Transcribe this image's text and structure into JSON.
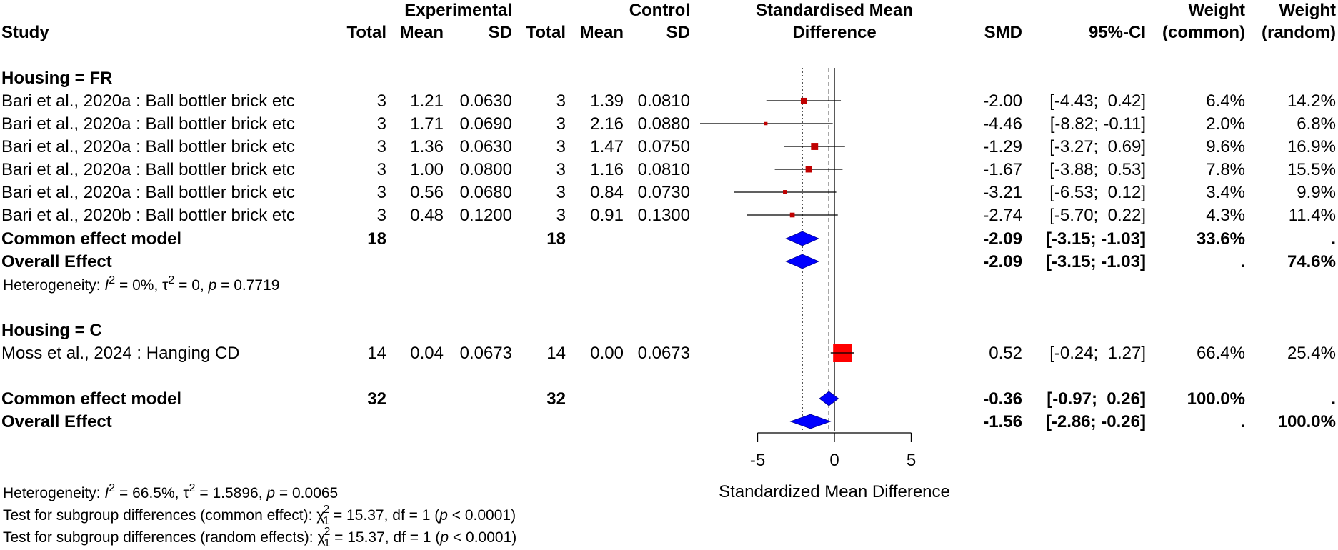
{
  "headers": {
    "study": "Study",
    "experimental": "Experimental",
    "control": "Control",
    "total": "Total",
    "mean": "Mean",
    "sd": "SD",
    "smd_title_1": "Standardised Mean",
    "smd_title_2": "Difference",
    "smd": "SMD",
    "ci": "95%-CI",
    "weight": "Weight",
    "weight_common": "(common)",
    "weight_random": "(random)"
  },
  "groups": [
    {
      "label": "Housing = FR",
      "studies": [
        {
          "study": "Bari et al., 2020a : Ball bottler brick etc",
          "e_total": "3",
          "e_mean": "1.21",
          "e_sd": "0.0630",
          "c_total": "3",
          "c_mean": "1.39",
          "c_sd": "0.0810",
          "smd_text": "-2.00",
          "ci_text": "[-4.43;  0.42]",
          "w_common": "6.4%",
          "w_random": "14.2%"
        },
        {
          "study": "Bari et al., 2020a : Ball bottler brick etc",
          "e_total": "3",
          "e_mean": "1.71",
          "e_sd": "0.0690",
          "c_total": "3",
          "c_mean": "2.16",
          "c_sd": "0.0880",
          "smd_text": "-4.46",
          "ci_text": "[-8.82; -0.11]",
          "w_common": "2.0%",
          "w_random": "6.8%"
        },
        {
          "study": "Bari et al., 2020a : Ball bottler brick etc",
          "e_total": "3",
          "e_mean": "1.36",
          "e_sd": "0.0630",
          "c_total": "3",
          "c_mean": "1.47",
          "c_sd": "0.0750",
          "smd_text": "-1.29",
          "ci_text": "[-3.27;  0.69]",
          "w_common": "9.6%",
          "w_random": "16.9%"
        },
        {
          "study": "Bari et al., 2020a : Ball bottler brick etc",
          "e_total": "3",
          "e_mean": "1.00",
          "e_sd": "0.0800",
          "c_total": "3",
          "c_mean": "1.16",
          "c_sd": "0.0810",
          "smd_text": "-1.67",
          "ci_text": "[-3.88;  0.53]",
          "w_common": "7.8%",
          "w_random": "15.5%"
        },
        {
          "study": "Bari et al., 2020a : Ball bottler brick etc",
          "e_total": "3",
          "e_mean": "0.56",
          "e_sd": "0.0680",
          "c_total": "3",
          "c_mean": "0.84",
          "c_sd": "0.0730",
          "smd_text": "-3.21",
          "ci_text": "[-6.53;  0.12]",
          "w_common": "3.4%",
          "w_random": "9.9%"
        },
        {
          "study": "Bari et al., 2020b : Ball bottler brick etc",
          "e_total": "3",
          "e_mean": "0.48",
          "e_sd": "0.1200",
          "c_total": "3",
          "c_mean": "0.91",
          "c_sd": "0.1300",
          "smd_text": "-2.74",
          "ci_text": "[-5.70;  0.22]",
          "w_common": "4.3%",
          "w_random": "11.4%"
        }
      ],
      "common": {
        "label": "Common effect model",
        "e_total": "18",
        "c_total": "18",
        "smd_text": "-2.09",
        "ci_text": "[-3.15; -1.03]",
        "w_common": "33.6%",
        "w_random": "."
      },
      "overall": {
        "label": "Overall Effect",
        "smd_text": "-2.09",
        "ci_text": "[-3.15; -1.03]",
        "w_common": ".",
        "w_random": "74.6%"
      },
      "heterogeneity": {
        "prefix": "Heterogeneity: ",
        "i2": " = 0%, ",
        "tau2": " = 0, ",
        "p": " = 0.7719"
      }
    },
    {
      "label": "Housing = C",
      "studies": [
        {
          "study": "Moss et al., 2024 : Hanging CD",
          "e_total": "14",
          "e_mean": "0.04",
          "e_sd": "0.0673",
          "c_total": "14",
          "c_mean": "0.00",
          "c_sd": "0.0673",
          "smd_text": "0.52",
          "ci_text": "[-0.24;  1.27]",
          "w_common": "66.4%",
          "w_random": "25.4%"
        }
      ]
    }
  ],
  "totals": {
    "common": {
      "label": "Common effect model",
      "e_total": "32",
      "c_total": "32",
      "smd_text": "-0.36",
      "ci_text": "[-0.97;  0.26]",
      "w_common": "100.0%",
      "w_random": "."
    },
    "overall": {
      "label": "Overall Effect",
      "smd_text": "-1.56",
      "ci_text": "[-2.86; -0.26]",
      "w_common": ".",
      "w_random": "100.0%"
    }
  },
  "footer": {
    "het_prefix": "Heterogeneity: ",
    "het_i2": " = 66.5%, ",
    "het_tau2": " = 1.5896, ",
    "het_p": " = 0.0065",
    "test_common_prefix": "Test for subgroup differences (common effect): ",
    "test_common_rest": " = 15.37, df = 1 (",
    "test_common_p": " < 0.0001)",
    "test_random_prefix": "Test for subgroup differences (random effects): ",
    "test_random_rest": " = 15.37, df = 1 (",
    "test_random_p": " < 0.0001)"
  },
  "symbols": {
    "i": "I",
    "sup2": "2",
    "tau": "τ",
    "p": "p",
    "chi": "χ",
    "sub1": "1"
  },
  "colors": {
    "study_square": "#c00000",
    "pooled_square": "#ff0000",
    "diamond": "#0000ff",
    "line": "#000000"
  },
  "chart_data": {
    "type": "forest",
    "xlabel": "Standardized Mean Difference",
    "xlim": [
      -5,
      5
    ],
    "ticks": [
      -5,
      0,
      5
    ],
    "tick_labels": [
      "-5",
      "0",
      "5"
    ],
    "reference_line": 0,
    "dotted_line_common_fr": -2.09,
    "dashed_line_common_total": -0.36,
    "studies": [
      {
        "smd": -2.0,
        "lower": -4.43,
        "upper": 0.42,
        "weight_common": 6.4
      },
      {
        "smd": -4.46,
        "lower": -8.82,
        "upper": -0.11,
        "weight_common": 2.0
      },
      {
        "smd": -1.29,
        "lower": -3.27,
        "upper": 0.69,
        "weight_common": 9.6
      },
      {
        "smd": -1.67,
        "lower": -3.88,
        "upper": 0.53,
        "weight_common": 7.8
      },
      {
        "smd": -3.21,
        "lower": -6.53,
        "upper": 0.12,
        "weight_common": 3.4
      },
      {
        "smd": -2.74,
        "lower": -5.7,
        "upper": 0.22,
        "weight_common": 4.3
      },
      {
        "smd": 0.52,
        "lower": -0.24,
        "upper": 1.27,
        "weight_common": 66.4
      }
    ],
    "pooled": [
      {
        "name": "FR common effect",
        "smd": -2.09,
        "lower": -3.15,
        "upper": -1.03
      },
      {
        "name": "FR overall effect",
        "smd": -2.09,
        "lower": -3.15,
        "upper": -1.03
      },
      {
        "name": "Total common effect",
        "smd": -0.36,
        "lower": -0.97,
        "upper": 0.26
      },
      {
        "name": "Total overall effect",
        "smd": -1.56,
        "lower": -2.86,
        "upper": -0.26
      }
    ]
  }
}
